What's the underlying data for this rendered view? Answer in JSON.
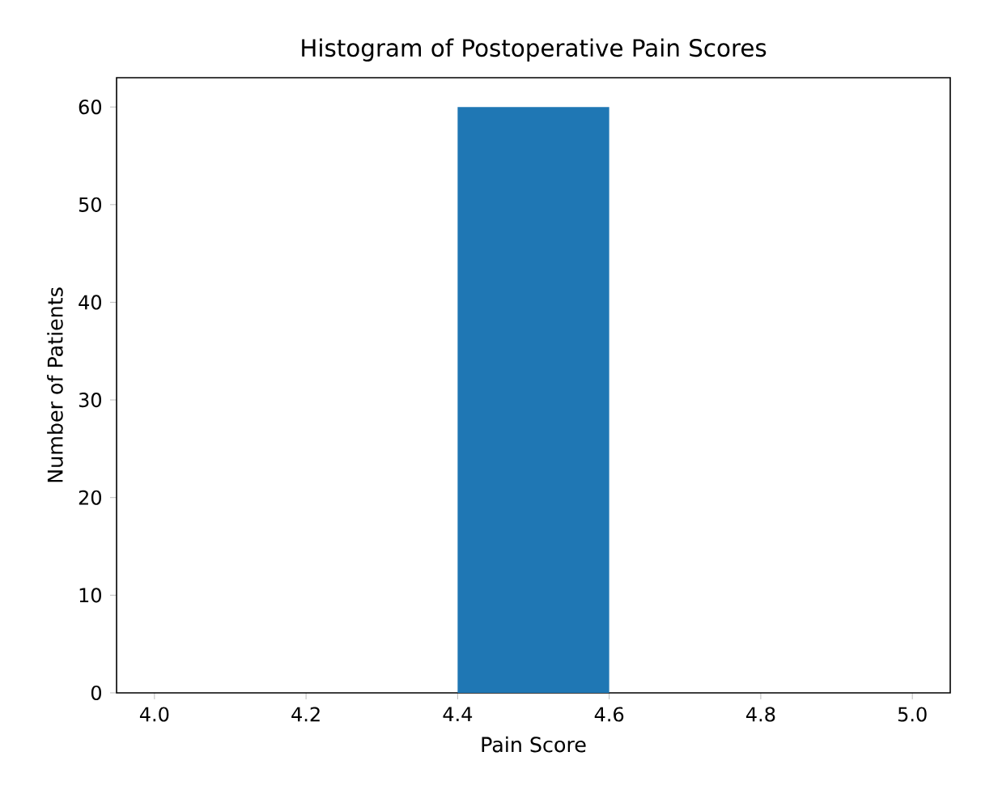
{
  "chart_data": {
    "type": "histogram",
    "title": "Histogram of Postoperative Pain Scores",
    "xlabel": "Pain Score",
    "ylabel": "Number of Patients",
    "bins": [
      4.0,
      4.2,
      4.4,
      4.6,
      4.8,
      5.0
    ],
    "values": [
      0,
      0,
      60,
      0,
      0
    ],
    "color": "#1f77b4",
    "xlim": [
      3.95,
      5.05
    ],
    "ylim": [
      0,
      63
    ],
    "xticks": [
      {
        "value": 4.0,
        "label": "4.0"
      },
      {
        "value": 4.2,
        "label": "4.2"
      },
      {
        "value": 4.4,
        "label": "4.4"
      },
      {
        "value": 4.6,
        "label": "4.6"
      },
      {
        "value": 4.8,
        "label": "4.8"
      },
      {
        "value": 5.0,
        "label": "5.0"
      }
    ],
    "yticks": [
      0,
      10,
      20,
      30,
      40,
      50,
      60
    ],
    "grid": false
  }
}
